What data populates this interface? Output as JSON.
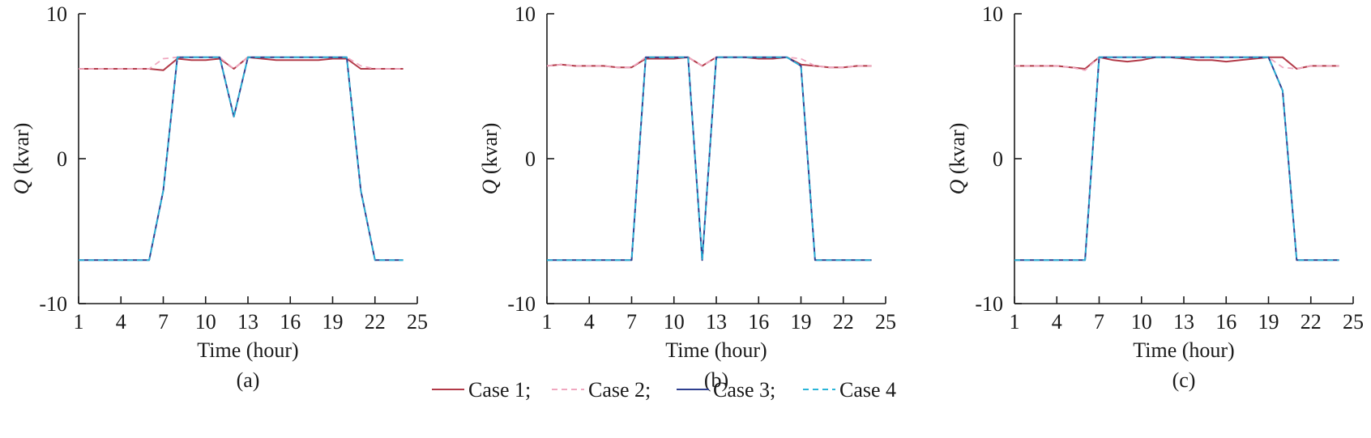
{
  "chart_data": [
    {
      "type": "line",
      "panel_label": "(a)",
      "xlabel": "Time (hour)",
      "ylabel_var": "Q",
      "ylabel_unit": " (kvar)",
      "xlim": [
        1,
        25
      ],
      "ylim": [
        -10,
        10
      ],
      "xticks": [
        1,
        4,
        7,
        10,
        13,
        16,
        19,
        22,
        25
      ],
      "yticks": [
        -10,
        0,
        10
      ],
      "x": [
        1,
        2,
        3,
        4,
        5,
        6,
        7,
        8,
        9,
        10,
        11,
        12,
        13,
        14,
        15,
        16,
        17,
        18,
        19,
        20,
        21,
        22,
        23,
        24
      ],
      "series": [
        {
          "name": "Case 1",
          "values": [
            6.2,
            6.2,
            6.2,
            6.2,
            6.2,
            6.2,
            6.1,
            6.9,
            6.8,
            6.8,
            6.9,
            6.2,
            7.0,
            6.9,
            6.8,
            6.8,
            6.8,
            6.8,
            6.9,
            6.9,
            6.2,
            6.2,
            6.2,
            6.2
          ]
        },
        {
          "name": "Case 2",
          "values": [
            6.2,
            6.2,
            6.2,
            6.2,
            6.2,
            6.2,
            6.9,
            7.0,
            7.0,
            7.0,
            7.0,
            6.2,
            7.0,
            7.0,
            7.0,
            7.0,
            7.0,
            7.0,
            7.0,
            7.0,
            6.4,
            6.2,
            6.2,
            6.2
          ]
        },
        {
          "name": "Case 3",
          "values": [
            -7.0,
            -7.0,
            -7.0,
            -7.0,
            -7.0,
            -7.0,
            -2.2,
            7.0,
            7.0,
            7.0,
            7.0,
            2.9,
            7.0,
            7.0,
            7.0,
            7.0,
            7.0,
            7.0,
            7.0,
            7.0,
            -2.2,
            -7.0,
            -7.0,
            -7.0
          ]
        },
        {
          "name": "Case 4",
          "values": [
            -7.0,
            -7.0,
            -7.0,
            -7.0,
            -7.0,
            -7.0,
            -2.2,
            7.0,
            7.0,
            7.0,
            7.0,
            2.9,
            7.0,
            7.0,
            7.0,
            7.0,
            7.0,
            7.0,
            7.0,
            7.0,
            -2.2,
            -7.0,
            -7.0,
            -7.0
          ]
        }
      ]
    },
    {
      "type": "line",
      "panel_label": "(b)",
      "xlabel": "Time (hour)",
      "ylabel_var": "Q",
      "ylabel_unit": " (kvar)",
      "xlim": [
        1,
        25
      ],
      "ylim": [
        -10,
        10
      ],
      "xticks": [
        1,
        4,
        7,
        10,
        13,
        16,
        19,
        22,
        25
      ],
      "yticks": [
        -10,
        0,
        10
      ],
      "x": [
        1,
        2,
        3,
        4,
        5,
        6,
        7,
        8,
        9,
        10,
        11,
        12,
        13,
        14,
        15,
        16,
        17,
        18,
        19,
        20,
        21,
        22,
        23,
        24
      ],
      "series": [
        {
          "name": "Case 1",
          "values": [
            6.4,
            6.5,
            6.4,
            6.4,
            6.4,
            6.3,
            6.3,
            6.9,
            6.9,
            6.9,
            7.0,
            6.4,
            7.0,
            7.0,
            7.0,
            6.9,
            6.9,
            7.0,
            6.5,
            6.4,
            6.3,
            6.3,
            6.4,
            6.4
          ]
        },
        {
          "name": "Case 2",
          "values": [
            6.4,
            6.5,
            6.4,
            6.4,
            6.4,
            6.3,
            6.3,
            7.0,
            7.0,
            7.0,
            7.0,
            6.4,
            7.0,
            7.0,
            7.0,
            7.0,
            7.0,
            7.0,
            6.9,
            6.4,
            6.3,
            6.3,
            6.4,
            6.4
          ]
        },
        {
          "name": "Case 3",
          "values": [
            -7.0,
            -7.0,
            -7.0,
            -7.0,
            -7.0,
            -7.0,
            -7.0,
            7.0,
            7.0,
            7.0,
            7.0,
            -7.0,
            7.0,
            7.0,
            7.0,
            7.0,
            7.0,
            7.0,
            6.4,
            -7.0,
            -7.0,
            -7.0,
            -7.0,
            -7.0
          ]
        },
        {
          "name": "Case 4",
          "values": [
            -7.0,
            -7.0,
            -7.0,
            -7.0,
            -7.0,
            -7.0,
            -7.0,
            7.0,
            7.0,
            7.0,
            7.0,
            -7.0,
            7.0,
            7.0,
            7.0,
            7.0,
            7.0,
            7.0,
            6.4,
            -7.0,
            -7.0,
            -7.0,
            -7.0,
            -7.0
          ]
        }
      ]
    },
    {
      "type": "line",
      "panel_label": "(c)",
      "xlabel": "Time (hour)",
      "ylabel_var": "Q",
      "ylabel_unit": " (kvar)",
      "xlim": [
        1,
        25
      ],
      "ylim": [
        -10,
        10
      ],
      "xticks": [
        1,
        4,
        7,
        10,
        13,
        16,
        19,
        22,
        25
      ],
      "yticks": [
        -10,
        0,
        10
      ],
      "x": [
        1,
        2,
        3,
        4,
        5,
        6,
        7,
        8,
        9,
        10,
        11,
        12,
        13,
        14,
        15,
        16,
        17,
        18,
        19,
        20,
        21,
        22,
        23,
        24
      ],
      "series": [
        {
          "name": "Case 1",
          "values": [
            6.4,
            6.4,
            6.4,
            6.4,
            6.3,
            6.2,
            7.0,
            6.8,
            6.7,
            6.8,
            7.0,
            7.0,
            6.9,
            6.8,
            6.8,
            6.7,
            6.8,
            6.9,
            7.0,
            7.0,
            6.2,
            6.4,
            6.4,
            6.4
          ]
        },
        {
          "name": "Case 2",
          "values": [
            6.4,
            6.4,
            6.4,
            6.4,
            6.3,
            6.1,
            7.0,
            7.0,
            7.0,
            7.0,
            7.0,
            7.0,
            7.0,
            7.0,
            7.0,
            7.0,
            7.0,
            7.0,
            7.0,
            6.3,
            6.2,
            6.4,
            6.4,
            6.4
          ]
        },
        {
          "name": "Case 3",
          "values": [
            -7.0,
            -7.0,
            -7.0,
            -7.0,
            -7.0,
            -7.0,
            7.0,
            7.0,
            7.0,
            7.0,
            7.0,
            7.0,
            7.0,
            7.0,
            7.0,
            7.0,
            7.0,
            7.0,
            7.0,
            4.7,
            -7.0,
            -7.0,
            -7.0,
            -7.0
          ]
        },
        {
          "name": "Case 4",
          "values": [
            -7.0,
            -7.0,
            -7.0,
            -7.0,
            -7.0,
            -7.0,
            7.0,
            7.0,
            7.0,
            7.0,
            7.0,
            7.0,
            7.0,
            7.0,
            7.0,
            7.0,
            7.0,
            7.0,
            7.0,
            4.7,
            -7.0,
            -7.0,
            -7.0,
            -7.0
          ]
        }
      ]
    }
  ],
  "legend": {
    "placement": "bottom-center",
    "entries": [
      {
        "label": "Case 1;",
        "color": "#b23a48",
        "style": "solid"
      },
      {
        "label": "Case 2;",
        "color": "#f0a8c0",
        "style": "dashed"
      },
      {
        "label": "Case 3;",
        "color": "#2e3f8f",
        "style": "solid"
      },
      {
        "label": "Case 4",
        "color": "#2bb5d8",
        "style": "dashed"
      }
    ]
  },
  "series_styles": [
    {
      "color": "#b23a48",
      "style": "solid"
    },
    {
      "color": "#f0a8c0",
      "style": "dashed"
    },
    {
      "color": "#2e3f8f",
      "style": "solid"
    },
    {
      "color": "#2bb5d8",
      "style": "dashed"
    }
  ]
}
